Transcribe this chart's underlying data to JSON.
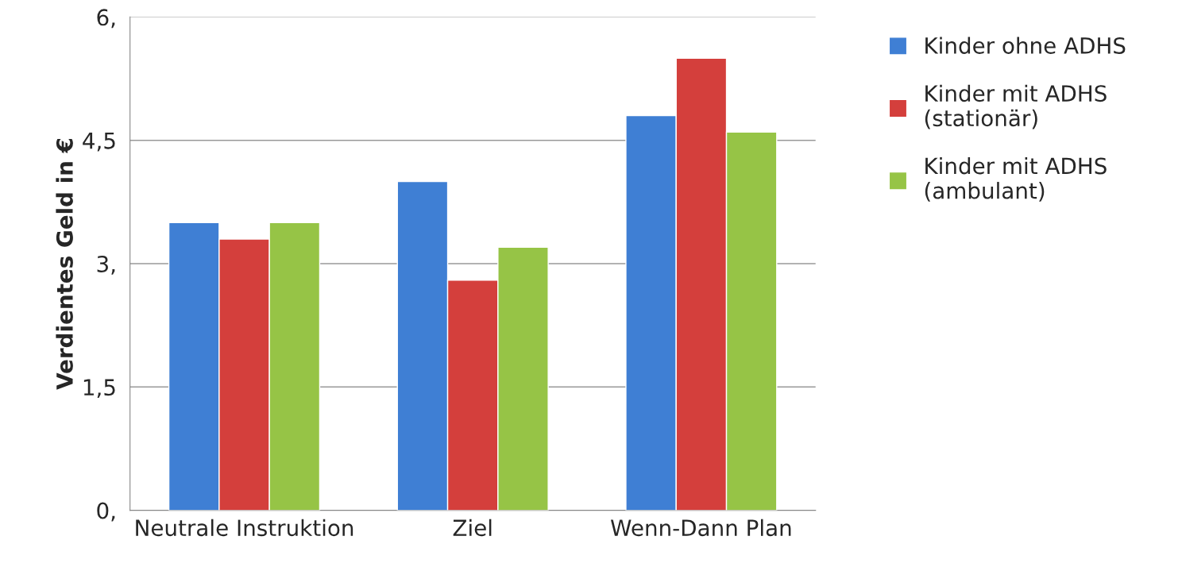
{
  "chart_data": {
    "type": "bar",
    "ylabel": "Verdientes Geld in €",
    "categories": [
      "Neutrale Instruktion",
      "Ziel",
      "Wenn-Dann Plan"
    ],
    "series": [
      {
        "name": "Kinder ohne ADHS",
        "color": "#3f7fd4",
        "values": [
          3.5,
          4.0,
          4.8
        ]
      },
      {
        "name": "Kinder mit ADHS\n(stationär)",
        "color": "#d43f3c",
        "values": [
          3.3,
          2.8,
          5.5
        ]
      },
      {
        "name": "Kinder mit ADHS\n(ambulant)",
        "color": "#96c446",
        "values": [
          3.5,
          3.2,
          4.6
        ]
      }
    ],
    "ylim": [
      0,
      6
    ],
    "yticks": [
      {
        "value": 0,
        "label": "0,"
      },
      {
        "value": 1.5,
        "label": "1,5"
      },
      {
        "value": 3,
        "label": "3,"
      },
      {
        "value": 4.5,
        "label": "4,5"
      },
      {
        "value": 6,
        "label": "6,"
      }
    ],
    "grid": "y",
    "legend": "top right"
  }
}
